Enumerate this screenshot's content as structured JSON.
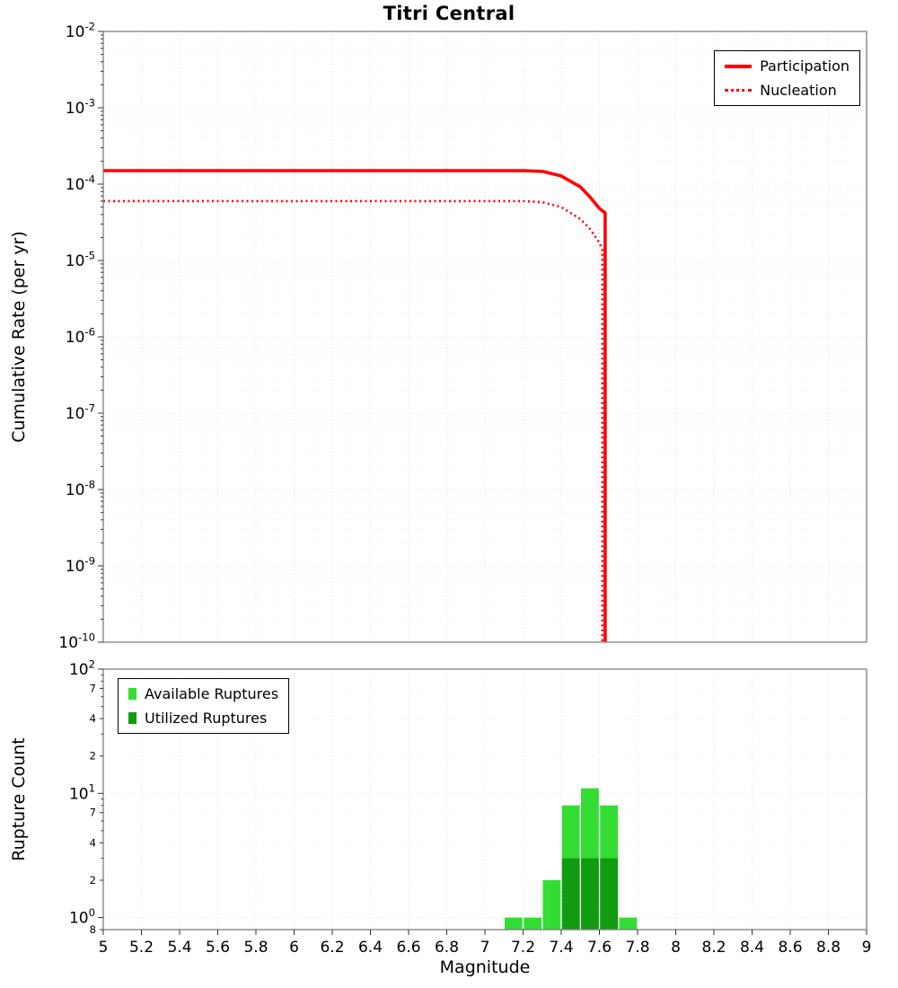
{
  "chart_data": [
    {
      "type": "line",
      "title": "Titri Central",
      "ylabel": "Cumulative Rate (per yr)",
      "xlabel": "Magnitude",
      "xlim": [
        5,
        9
      ],
      "ylim": [
        1e-10,
        0.01
      ],
      "x_tick_step": 0.2,
      "y_ticks_exponents": [
        -2,
        -3,
        -4,
        -5,
        -6,
        -7,
        -8,
        -9,
        -10
      ],
      "grid": true,
      "legend_position": "top-right",
      "series": [
        {
          "name": "Participation",
          "line_style": "solid",
          "line_width": 3.6,
          "color": "#ff0000",
          "points": [
            [
              5,
              0.00015
            ],
            [
              7.2,
              0.00015
            ],
            [
              7.3,
              0.000147
            ],
            [
              7.4,
              0.000128
            ],
            [
              7.5,
              9.2e-05
            ],
            [
              7.55,
              6.8e-05
            ],
            [
              7.6,
              4.8e-05
            ],
            [
              7.63,
              4.2e-05
            ],
            [
              7.63,
              1e-10
            ]
          ]
        },
        {
          "name": "Nucleation",
          "line_style": "dotted",
          "line_width": 2.6,
          "color": "#ff0000",
          "points": [
            [
              5,
              6e-05
            ],
            [
              7.2,
              6e-05
            ],
            [
              7.3,
              5.8e-05
            ],
            [
              7.4,
              5e-05
            ],
            [
              7.5,
              3.5e-05
            ],
            [
              7.55,
              2.6e-05
            ],
            [
              7.6,
              1.7e-05
            ],
            [
              7.615,
              1.4e-05
            ],
            [
              7.615,
              1e-10
            ]
          ]
        }
      ]
    },
    {
      "type": "bar",
      "ylabel": "Rupture Count",
      "xlabel": "Magnitude",
      "xlim": [
        5,
        9
      ],
      "ylim": [
        0.8,
        100
      ],
      "x_tick_step": 0.2,
      "bar_width": 0.1,
      "grid": true,
      "legend_position": "top-left",
      "categories": [
        7.15,
        7.25,
        7.35,
        7.45,
        7.55,
        7.65,
        7.75
      ],
      "series": [
        {
          "name": "Available Ruptures",
          "color": "#33dd33",
          "values": [
            1,
            1,
            2,
            8,
            11,
            8,
            1
          ]
        },
        {
          "name": "Utilized Ruptures",
          "color": "#119c11",
          "values": [
            0,
            0,
            0,
            3,
            3,
            3,
            0
          ]
        }
      ],
      "y_major_ticks": [
        1,
        10,
        100
      ],
      "y_minor_labeled_ticks": [
        70,
        40,
        20,
        7,
        4,
        2,
        0.8
      ]
    }
  ],
  "style": {
    "grid_major_color": "#e0e0e0",
    "grid_minor_color": "#f1f1f1",
    "panel_border_color": "#808080",
    "tick_color": "#333333",
    "text_color": "#000000",
    "background": "#ffffff"
  }
}
